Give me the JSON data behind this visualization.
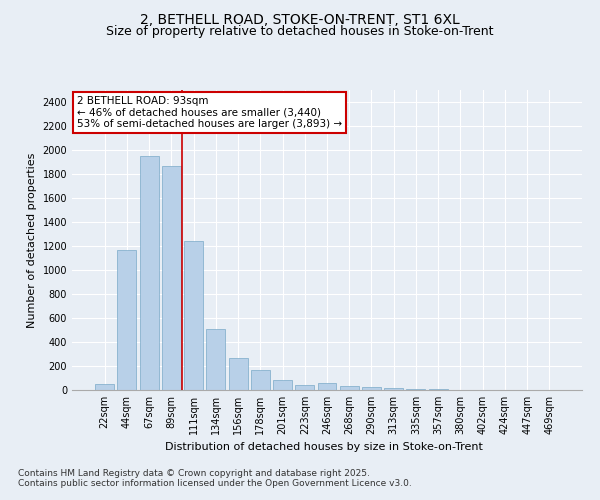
{
  "title1": "2, BETHELL ROAD, STOKE-ON-TRENT, ST1 6XL",
  "title2": "Size of property relative to detached houses in Stoke-on-Trent",
  "xlabel": "Distribution of detached houses by size in Stoke-on-Trent",
  "ylabel": "Number of detached properties",
  "categories": [
    "22sqm",
    "44sqm",
    "67sqm",
    "89sqm",
    "111sqm",
    "134sqm",
    "156sqm",
    "178sqm",
    "201sqm",
    "223sqm",
    "246sqm",
    "268sqm",
    "290sqm",
    "313sqm",
    "335sqm",
    "357sqm",
    "380sqm",
    "402sqm",
    "424sqm",
    "447sqm",
    "469sqm"
  ],
  "values": [
    50,
    1170,
    1950,
    1870,
    1240,
    510,
    270,
    165,
    80,
    45,
    55,
    30,
    25,
    15,
    5,
    5,
    3,
    2,
    2,
    2,
    1
  ],
  "bar_color": "#b8d0e8",
  "bar_edgecolor": "#7aaac8",
  "vline_x": 3.5,
  "vline_color": "#cc0000",
  "annotation_text": "2 BETHELL ROAD: 93sqm\n← 46% of detached houses are smaller (3,440)\n53% of semi-detached houses are larger (3,893) →",
  "annotation_box_color": "#ffffff",
  "annotation_box_edgecolor": "#cc0000",
  "ylim": [
    0,
    2500
  ],
  "yticks": [
    0,
    200,
    400,
    600,
    800,
    1000,
    1200,
    1400,
    1600,
    1800,
    2000,
    2200,
    2400
  ],
  "footnote1": "Contains HM Land Registry data © Crown copyright and database right 2025.",
  "footnote2": "Contains public sector information licensed under the Open Government Licence v3.0.",
  "bg_color": "#e8eef5",
  "plot_bg_color": "#e8eef5",
  "title1_fontsize": 10,
  "title2_fontsize": 9,
  "label_fontsize": 8,
  "tick_fontsize": 7,
  "footnote_fontsize": 6.5,
  "annotation_fontsize": 7.5
}
